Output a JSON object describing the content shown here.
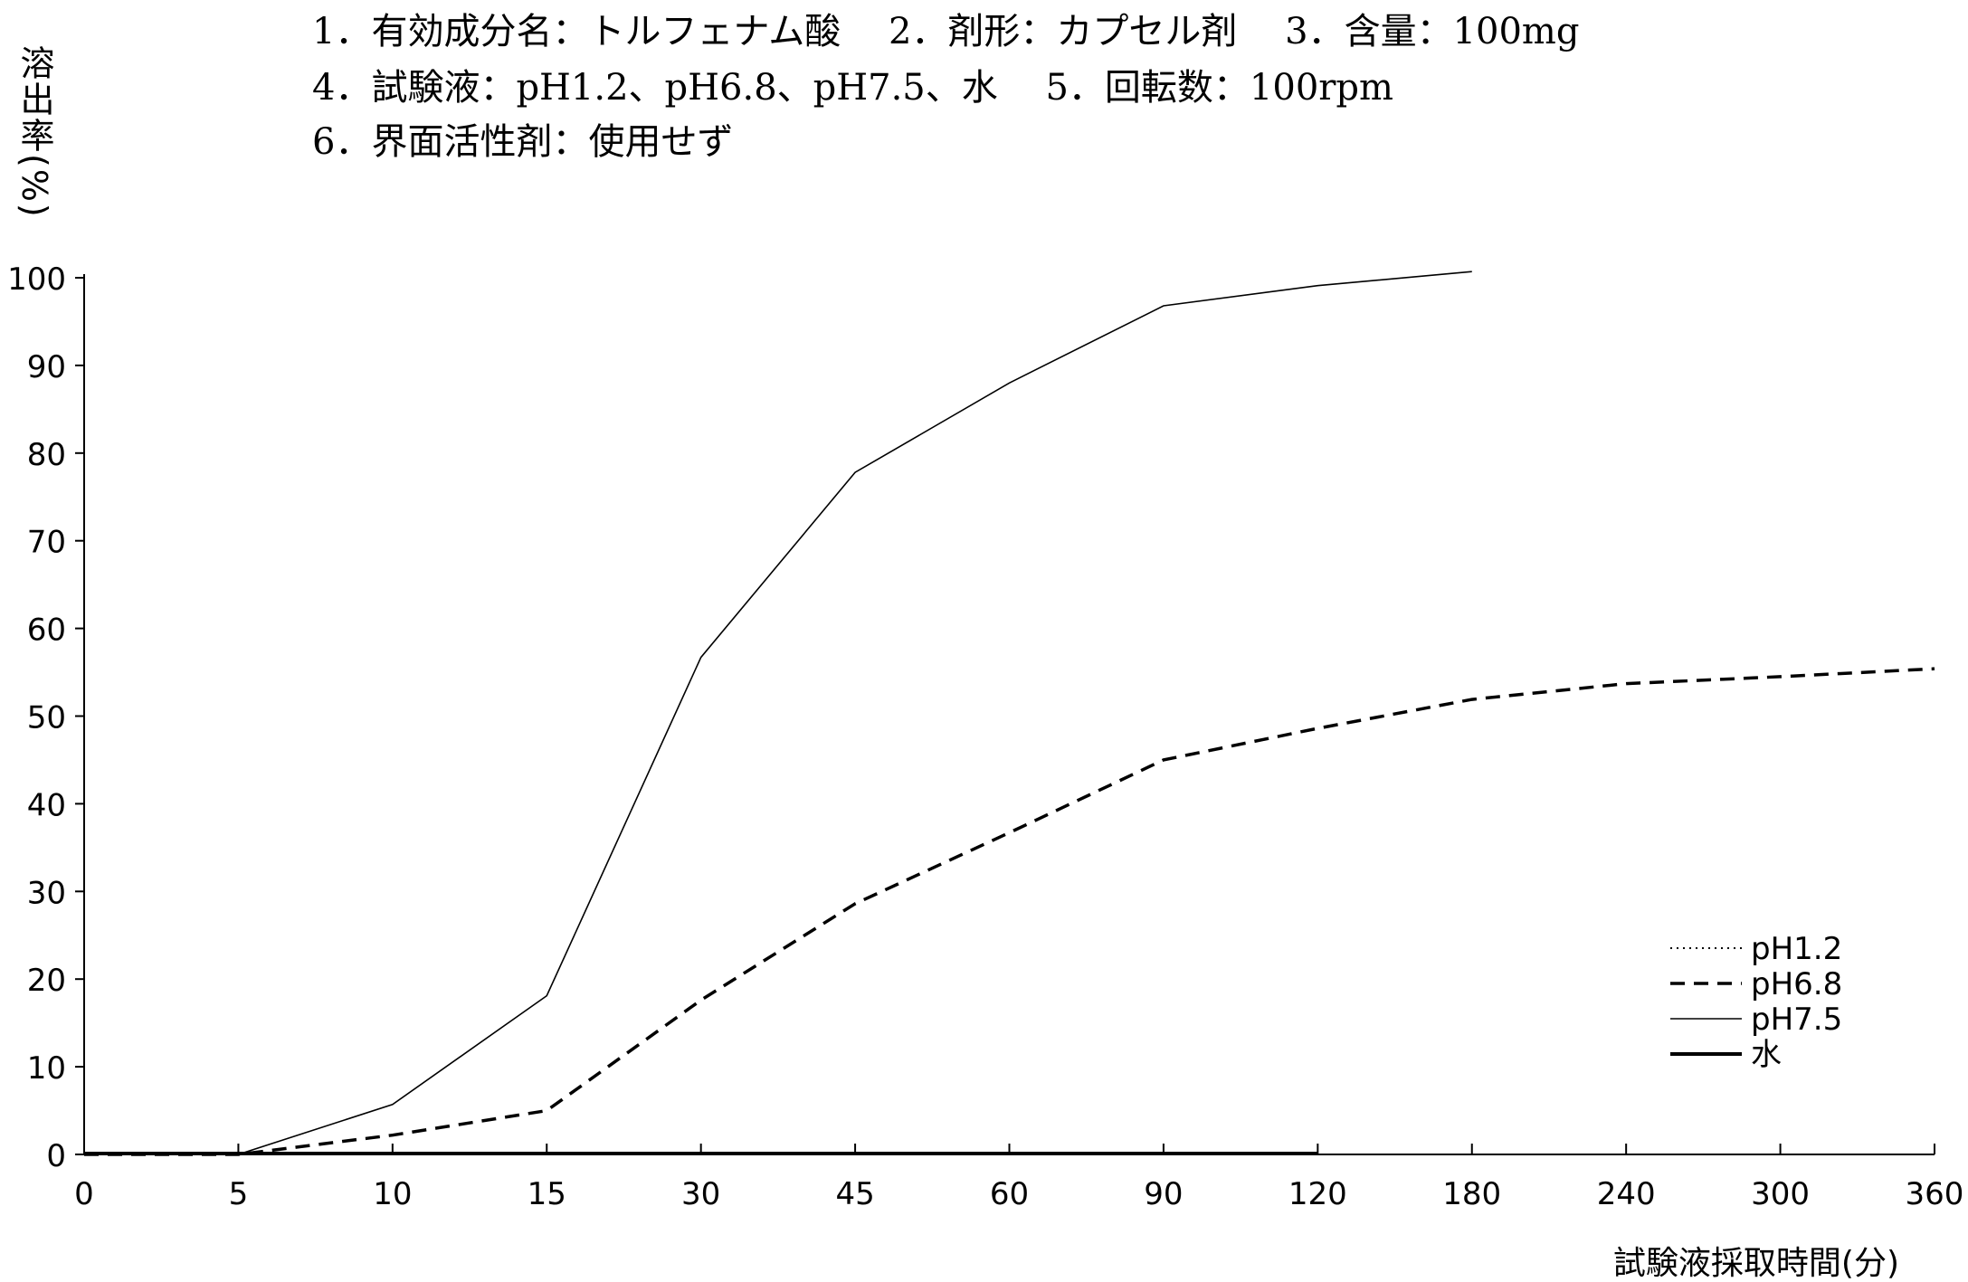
{
  "conditions": [
    "1．有効成分名：トルフェナム酸　 2．剤形：カプセル剤　 3．含量：100mg",
    "4．試験液：pH1.2、pH6.8、pH7.5、水　 5．回転数：100rpm",
    "6．界面活性剤：使用せず"
  ],
  "chart_data": {
    "type": "line",
    "title": "",
    "xlabel": "試験液採取時間(分)",
    "ylabel": "溶出率(%)",
    "categories": [
      "0",
      "5",
      "10",
      "15",
      "30",
      "45",
      "60",
      "90",
      "120",
      "180",
      "240",
      "300",
      "360"
    ],
    "ylim": [
      0,
      100
    ],
    "yticks": [
      0,
      10,
      20,
      30,
      40,
      50,
      60,
      70,
      80,
      90,
      100
    ],
    "grid": false,
    "legend_position": "right",
    "series": [
      {
        "name": "pH1.2",
        "style": "dotted",
        "values": [
          0,
          0,
          0,
          0,
          0,
          0,
          0,
          0,
          0,
          0,
          0,
          0,
          0
        ]
      },
      {
        "name": "pH6.8",
        "style": "dashed",
        "values": [
          0,
          0,
          2.2,
          5.0,
          17.6,
          28.6,
          36.7,
          45.0,
          48.6,
          51.9,
          53.7,
          54.5,
          55.4
        ]
      },
      {
        "name": "pH7.5",
        "style": "thin-solid",
        "values": [
          0,
          0,
          5.7,
          18.1,
          56.7,
          77.8,
          88.0,
          96.8,
          99.1,
          100.7,
          null,
          null,
          null
        ]
      },
      {
        "name": "水",
        "style": "thick-solid",
        "values": [
          0,
          0,
          0,
          0,
          0,
          0,
          0,
          0,
          0,
          null,
          null,
          null,
          null
        ]
      }
    ],
    "colors": {
      "line": "#000000",
      "background": "#ffffff"
    }
  }
}
